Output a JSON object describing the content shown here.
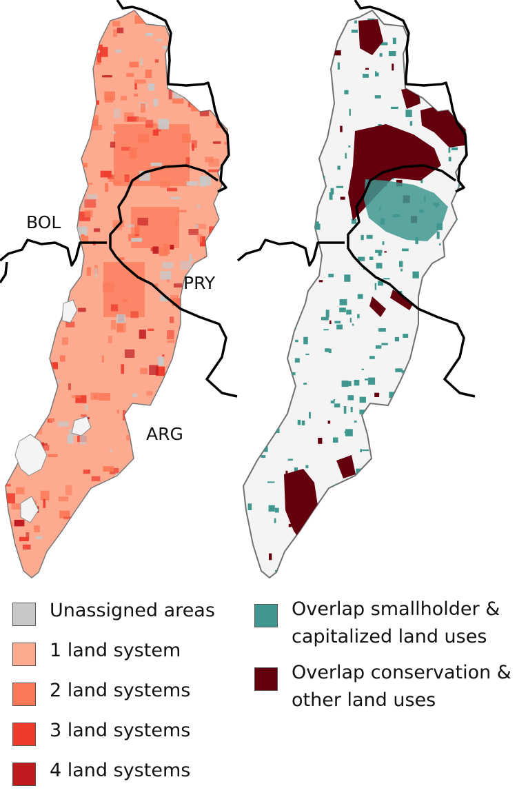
{
  "labels": {
    "bolivia": "BOL",
    "paraguay": "PRY",
    "argentina": "ARG"
  },
  "legend_left": [
    {
      "label": "Unassigned areas",
      "color": "#c8c8c8"
    },
    {
      "label": "1 land system",
      "color": "#fcab91"
    },
    {
      "label": "2 land systems",
      "color": "#fb7857"
    },
    {
      "label": "3 land systems",
      "color": "#ee3b2c"
    },
    {
      "label": "4 land systems",
      "color": "#c01a1f"
    }
  ],
  "legend_right": [
    {
      "line1": "Overlap smallholder &",
      "line2": "capitalized land uses",
      "color": "#3f978f"
    },
    {
      "line1": "Overlap conservation &",
      "line2": "other land uses",
      "color": "#64000e"
    }
  ],
  "colors": {
    "background_region": "#f4f4f4",
    "region_outline": "#707070",
    "border": "#000000"
  }
}
